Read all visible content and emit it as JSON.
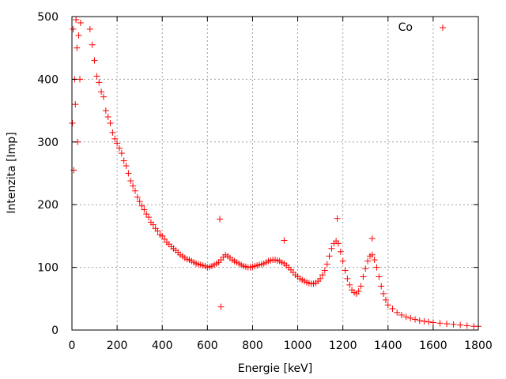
{
  "chart_data": {
    "type": "scatter",
    "title": "",
    "xlabel": "Energie [keV]",
    "ylabel": "Intenzita [Imp]",
    "xlim": [
      0,
      1800
    ],
    "ylim": [
      0,
      500
    ],
    "xticks": [
      0,
      200,
      400,
      600,
      800,
      1000,
      1200,
      1400,
      1600,
      1800
    ],
    "yticks": [
      0,
      100,
      200,
      300,
      400,
      500
    ],
    "grid": true,
    "legend_position": "top-right",
    "marker": "plus",
    "series": [
      {
        "name": "Co",
        "color": "#ff0000",
        "points": [
          [
            2,
            330
          ],
          [
            5,
            480
          ],
          [
            8,
            255
          ],
          [
            12,
            400
          ],
          [
            15,
            360
          ],
          [
            18,
            495
          ],
          [
            22,
            450
          ],
          [
            25,
            300
          ],
          [
            30,
            470
          ],
          [
            35,
            400
          ],
          [
            38,
            490
          ],
          [
            80,
            480
          ],
          [
            90,
            455
          ],
          [
            100,
            430
          ],
          [
            110,
            405
          ],
          [
            120,
            395
          ],
          [
            130,
            380
          ],
          [
            140,
            372
          ],
          [
            150,
            350
          ],
          [
            160,
            340
          ],
          [
            170,
            330
          ],
          [
            180,
            315
          ],
          [
            190,
            305
          ],
          [
            200,
            298
          ],
          [
            210,
            290
          ],
          [
            220,
            282
          ],
          [
            230,
            270
          ],
          [
            240,
            262
          ],
          [
            250,
            250
          ],
          [
            260,
            238
          ],
          [
            270,
            230
          ],
          [
            280,
            222
          ],
          [
            290,
            212
          ],
          [
            300,
            205
          ],
          [
            310,
            198
          ],
          [
            320,
            192
          ],
          [
            330,
            185
          ],
          [
            340,
            180
          ],
          [
            350,
            172
          ],
          [
            360,
            168
          ],
          [
            370,
            162
          ],
          [
            380,
            158
          ],
          [
            390,
            152
          ],
          [
            400,
            150
          ],
          [
            410,
            145
          ],
          [
            420,
            140
          ],
          [
            430,
            137
          ],
          [
            440,
            133
          ],
          [
            450,
            130
          ],
          [
            460,
            127
          ],
          [
            470,
            124
          ],
          [
            480,
            120
          ],
          [
            490,
            118
          ],
          [
            500,
            115
          ],
          [
            510,
            113
          ],
          [
            520,
            112
          ],
          [
            530,
            110
          ],
          [
            540,
            108
          ],
          [
            550,
            106
          ],
          [
            560,
            105
          ],
          [
            570,
            104
          ],
          [
            580,
            103
          ],
          [
            590,
            102
          ],
          [
            600,
            100
          ],
          [
            610,
            101
          ],
          [
            620,
            102
          ],
          [
            630,
            104
          ],
          [
            640,
            106
          ],
          [
            650,
            108
          ],
          [
            660,
            112
          ],
          [
            670,
            116
          ],
          [
            680,
            120
          ],
          [
            690,
            118
          ],
          [
            700,
            115
          ],
          [
            710,
            112
          ],
          [
            720,
            110
          ],
          [
            730,
            108
          ],
          [
            740,
            106
          ],
          [
            750,
            104
          ],
          [
            760,
            102
          ],
          [
            770,
            101
          ],
          [
            780,
            100
          ],
          [
            790,
            100
          ],
          [
            800,
            101
          ],
          [
            810,
            102
          ],
          [
            820,
            103
          ],
          [
            830,
            104
          ],
          [
            840,
            105
          ],
          [
            850,
            106
          ],
          [
            860,
            108
          ],
          [
            870,
            110
          ],
          [
            880,
            111
          ],
          [
            890,
            112
          ],
          [
            900,
            112
          ],
          [
            910,
            111
          ],
          [
            920,
            110
          ],
          [
            930,
            108
          ],
          [
            940,
            106
          ],
          [
            950,
            103
          ],
          [
            960,
            100
          ],
          [
            970,
            96
          ],
          [
            980,
            92
          ],
          [
            990,
            88
          ],
          [
            1000,
            85
          ],
          [
            1010,
            82
          ],
          [
            1020,
            80
          ],
          [
            1030,
            78
          ],
          [
            1040,
            76
          ],
          [
            1050,
            75
          ],
          [
            1060,
            74
          ],
          [
            1070,
            74
          ],
          [
            1080,
            75
          ],
          [
            1090,
            78
          ],
          [
            1100,
            82
          ],
          [
            1110,
            88
          ],
          [
            1120,
            95
          ],
          [
            1130,
            105
          ],
          [
            1140,
            118
          ],
          [
            1150,
            130
          ],
          [
            1160,
            138
          ],
          [
            1170,
            142
          ],
          [
            1180,
            138
          ],
          [
            1190,
            125
          ],
          [
            1200,
            110
          ],
          [
            1210,
            95
          ],
          [
            1220,
            82
          ],
          [
            1230,
            72
          ],
          [
            1240,
            64
          ],
          [
            1250,
            60
          ],
          [
            1260,
            58
          ],
          [
            1270,
            62
          ],
          [
            1280,
            70
          ],
          [
            1290,
            85
          ],
          [
            1300,
            98
          ],
          [
            1310,
            110
          ],
          [
            1320,
            118
          ],
          [
            1330,
            120
          ],
          [
            1340,
            112
          ],
          [
            1350,
            100
          ],
          [
            1360,
            85
          ],
          [
            1370,
            70
          ],
          [
            1380,
            58
          ],
          [
            1390,
            48
          ],
          [
            1400,
            40
          ],
          [
            1420,
            34
          ],
          [
            1440,
            28
          ],
          [
            1460,
            24
          ],
          [
            1480,
            21
          ],
          [
            1500,
            19
          ],
          [
            1520,
            17
          ],
          [
            1540,
            15
          ],
          [
            1560,
            14
          ],
          [
            1580,
            13
          ],
          [
            1600,
            12
          ],
          [
            1630,
            11
          ],
          [
            1660,
            10
          ],
          [
            1690,
            9
          ],
          [
            1720,
            8
          ],
          [
            1750,
            7
          ],
          [
            1780,
            6
          ],
          [
            1800,
            6
          ],
          [
            655,
            177
          ],
          [
            660,
            37
          ],
          [
            1175,
            178
          ],
          [
            1330,
            146
          ],
          [
            940,
            143
          ]
        ]
      }
    ]
  }
}
